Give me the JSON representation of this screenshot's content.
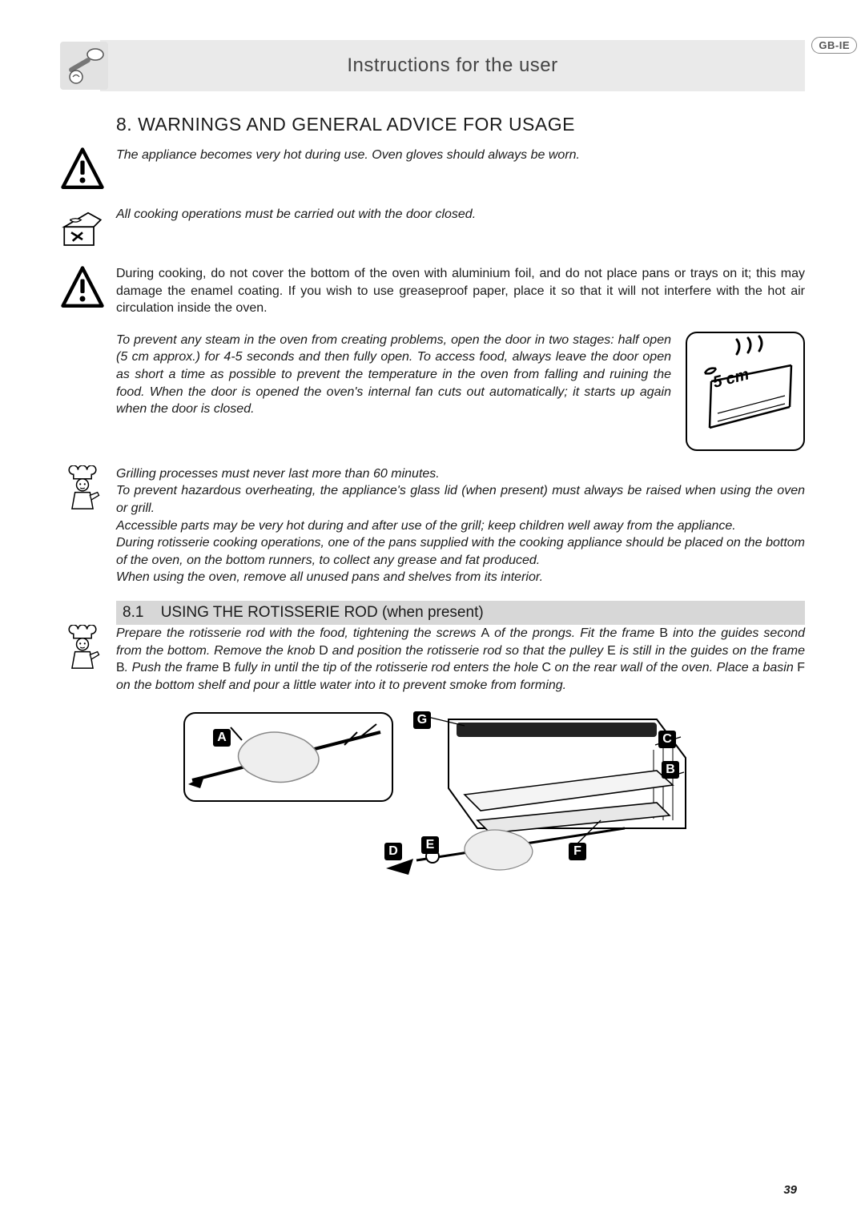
{
  "locale_badge": "GB-IE",
  "header_title": "Instructions for the user",
  "section_number": "8.",
  "section_title": "WARNINGS AND GENERAL ADVICE FOR USAGE",
  "warn1": "The appliance becomes very hot during use. Oven gloves should always be worn.",
  "warn2": "All cooking operations must be carried out with the door closed.",
  "warn3": "During cooking, do not cover the bottom of the oven with aluminium foil, and do not place pans or trays on it; this may damage the enamel coating. If you wish to use greaseproof paper, place it so that it will not interfere with the hot air circulation inside the oven.",
  "warn4": "To prevent any steam in the oven from creating problems, open the door in two stages: half open (5 cm approx.) for 4-5 seconds and then fully open. To access food, always leave the door open as short a time as possible to prevent the temperature in the oven from falling and ruining the food. When the door is opened the oven's internal fan cuts out automatically; it starts up again when the door is closed.",
  "chef_block": "Grilling processes must never last more than 60 minutes.\nTo prevent hazardous overheating, the appliance's glass lid (when present) must always be raised when using the oven or grill.\nAccessible parts may be very hot during and after use of the grill; keep children well away from the appliance.\nDuring rotisserie cooking operations, one of the pans supplied with the cooking appliance should be placed on the bottom of the oven, on the bottom runners, to collect any grease and fat produced.\nWhen using the oven, remove all unused pans and shelves from its interior.",
  "subsection_number": "8.1",
  "subsection_title": "USING THE ROTISSERIE ROD (when present)",
  "rotisserie_text_parts": [
    "Prepare the rotisserie rod with the food, tightening the screws ",
    "A",
    " of the prongs. Fit the frame ",
    "B",
    " into the guides second from the bottom. Remove the knob ",
    "D",
    " and position the rotisserie rod so that the pulley ",
    "E",
    " is still in the guides on the frame ",
    "B",
    ". Push the frame ",
    "B",
    " fully in until the tip of the rotisserie rod enters the hole ",
    "C",
    " on the rear wall of the oven. Place a basin ",
    "F",
    " on the bottom shelf and pour a little water into it to prevent smoke from forming."
  ],
  "figure_labels": {
    "A": "A",
    "B": "B",
    "C": "C",
    "D": "D",
    "E": "E",
    "F": "F",
    "G": "G"
  },
  "five_cm_label": "5 cm",
  "page_number": "39",
  "colors": {
    "header_bg": "#eaeaea",
    "subsection_bg": "#d7d7d7",
    "text": "#1a1a1a"
  }
}
